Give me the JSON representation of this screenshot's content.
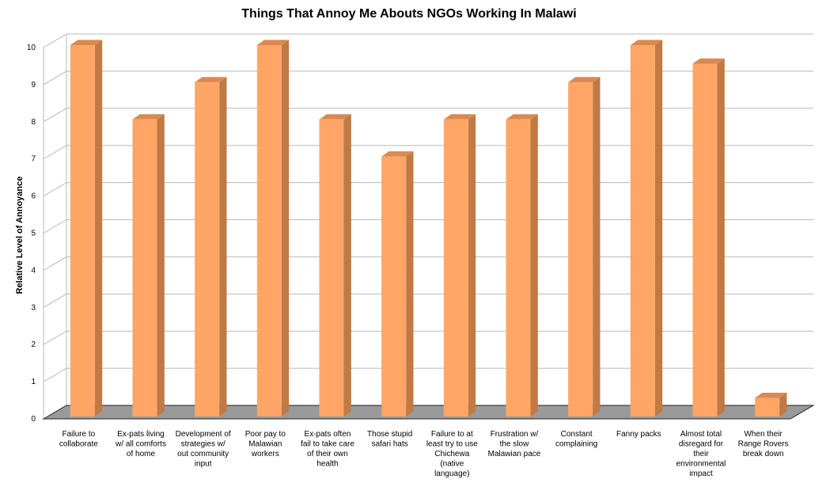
{
  "chart_data": {
    "type": "bar",
    "title": "Things That Annoy Me Abouts NGOs Working In Malawi",
    "xlabel": "",
    "ylabel": "Relative Level of Annoyance",
    "ylim": [
      0,
      10
    ],
    "yticks": [
      0,
      1,
      2,
      3,
      4,
      5,
      6,
      7,
      8,
      9,
      10
    ],
    "grid": true,
    "legend": "none",
    "style": "3d-column",
    "categories": [
      [
        "Failure to",
        "collaborate"
      ],
      [
        "Ex-pats living",
        "w/ all comforts",
        "of home"
      ],
      [
        "Development of",
        "strategies w/",
        "out community",
        "input"
      ],
      [
        "Poor pay to",
        "Malawian",
        "workers"
      ],
      [
        "Ex-pats often",
        "fail to take care",
        "of their own",
        "health"
      ],
      [
        "Those stupid",
        "safari hats"
      ],
      [
        "Failure to at",
        "least try to use",
        "Chichewa",
        "(native",
        "language)"
      ],
      [
        "Frustration w/",
        "the slow",
        "Malawian pace"
      ],
      [
        "Constant",
        "complaining"
      ],
      [
        "Fanny packs"
      ],
      [
        "Almost total",
        "disregard for",
        "their",
        "environmental",
        "impact"
      ],
      [
        "When their",
        "Range Rovers",
        "break down"
      ]
    ],
    "values": [
      10,
      8,
      9,
      10,
      8,
      7,
      8,
      8,
      9,
      10,
      9.5,
      0.5
    ],
    "colors": {
      "bar_front": "#FFA666",
      "bar_side": "#C07A45",
      "bar_top": "#D98A50",
      "floor": "#9a9a9a",
      "grid": "#b8b8b8"
    }
  }
}
